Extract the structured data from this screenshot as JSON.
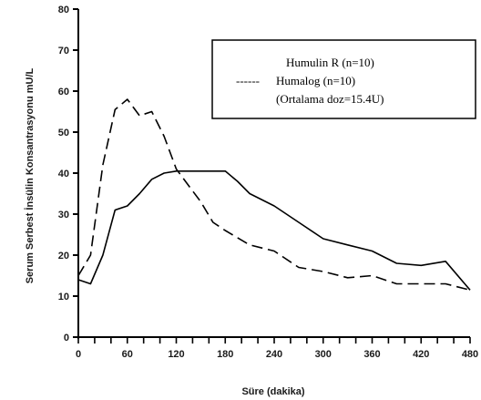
{
  "chart_data": {
    "type": "line",
    "title": "",
    "xlabel": "Süre (dakika)",
    "ylabel": "Serum Serbest İnsülin Konsantrasyonu mU/L",
    "xlim": [
      0,
      480
    ],
    "ylim": [
      0,
      80
    ],
    "x_ticks": [
      "0",
      "60",
      "120",
      "180",
      "240",
      "300",
      "360",
      "420",
      "480"
    ],
    "y_ticks": [
      "0",
      "10",
      "20",
      "30",
      "40",
      "50",
      "60",
      "70",
      "80"
    ],
    "x_tick_step_minor": 20,
    "grid": false,
    "legend_position": "top-right",
    "legend": {
      "line1": "Humulin R (n=10)",
      "line2_marker": "------",
      "line2": "Humalog (n=10)",
      "line3": "(Ortalama doz=15.4U)"
    },
    "series": [
      {
        "name": "Humulin R (n=10)",
        "style": "solid",
        "color": "#000000",
        "x": [
          0,
          15,
          30,
          45,
          60,
          75,
          90,
          105,
          120,
          135,
          150,
          165,
          180,
          195,
          210,
          240,
          270,
          300,
          330,
          360,
          390,
          420,
          450,
          480
        ],
        "y": [
          14,
          13,
          20,
          31,
          32,
          35,
          38.5,
          40,
          40.5,
          40.5,
          40.5,
          40.5,
          40.5,
          38,
          35,
          32,
          28,
          24,
          22.5,
          21,
          18,
          17.5,
          18.5,
          11.5
        ]
      },
      {
        "name": "Humalog (n=10)",
        "style": "dashed",
        "color": "#000000",
        "x": [
          0,
          15,
          30,
          45,
          60,
          75,
          90,
          105,
          120,
          135,
          150,
          165,
          180,
          210,
          240,
          270,
          300,
          330,
          360,
          390,
          420,
          450,
          480
        ],
        "y": [
          15,
          20,
          42,
          55.5,
          58,
          54,
          55,
          49,
          41,
          37,
          33,
          28,
          26,
          22.5,
          21,
          17,
          16,
          14.5,
          15,
          13,
          13,
          13,
          11.5
        ]
      }
    ]
  }
}
